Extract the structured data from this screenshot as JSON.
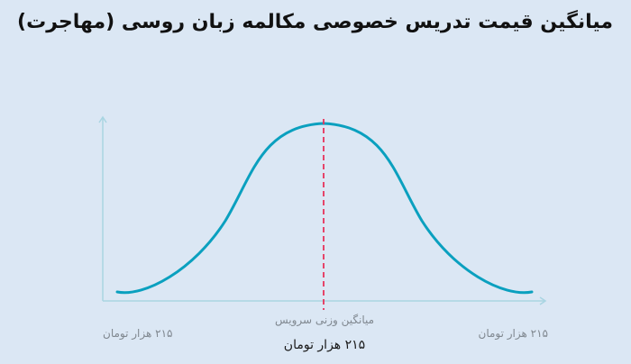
{
  "chart_data": {
    "type": "line",
    "title": "میانگین قیمت تدریس خصوصی مکالمه زبان روسی (مهاجرت)",
    "x_min_label": "۲۱۵ هزار تومان",
    "x_max_label": "۲۱۵ هزار تومان",
    "mean_label": "میانگین وزنی سرویس",
    "mean_value_label": "۲۱۵ هزار تومان",
    "curve": "normal-distribution",
    "colors": {
      "curve": "#0aa0bf",
      "mean_line": "#e8335a",
      "axis": "#a9d5e2"
    }
  }
}
